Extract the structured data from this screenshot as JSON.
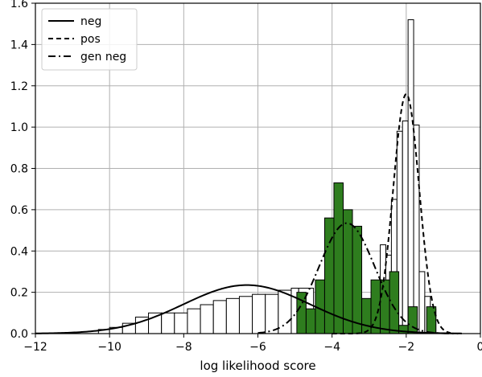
{
  "chart_data": {
    "type": "histogram",
    "title": "",
    "xlabel": "log likelihood score",
    "ylabel": "",
    "xlim": [
      -12,
      0
    ],
    "ylim": [
      0,
      1.6
    ],
    "xticks": [
      -12,
      -10,
      -8,
      -6,
      -4,
      -2,
      0
    ],
    "yticks": [
      0.0,
      0.2,
      0.4,
      0.6,
      0.8,
      1.0,
      1.2,
      1.4,
      1.6
    ],
    "ytick_labels": [
      "0.0",
      "0.2",
      "0.4",
      "0.6",
      "0.8",
      "1.0",
      "1.2",
      "1.4",
      "1.6"
    ],
    "xtick_labels": [
      "−12",
      "−10",
      "−8",
      "−6",
      "−4",
      "−2",
      "0"
    ],
    "grid": true,
    "legend_position": "top-left",
    "colors": {
      "neg_hist_fill": "#ffffff",
      "pos_hist_fill": "#ffffff",
      "gen_hist_fill": "#2e7d1e",
      "edge": "#000000",
      "grid": "#b0b0b0"
    },
    "histograms": [
      {
        "role": "neg",
        "fill": "#ffffff",
        "bins": [
          {
            "x0": -10.3,
            "x1": -10.0,
            "y": 0.02
          },
          {
            "x0": -10.0,
            "x1": -9.65,
            "y": 0.03
          },
          {
            "x0": -9.65,
            "x1": -9.3,
            "y": 0.05
          },
          {
            "x0": -9.3,
            "x1": -8.95,
            "y": 0.08
          },
          {
            "x0": -8.95,
            "x1": -8.6,
            "y": 0.1
          },
          {
            "x0": -8.6,
            "x1": -8.25,
            "y": 0.1
          },
          {
            "x0": -8.25,
            "x1": -7.9,
            "y": 0.1
          },
          {
            "x0": -7.9,
            "x1": -7.55,
            "y": 0.12
          },
          {
            "x0": -7.55,
            "x1": -7.2,
            "y": 0.14
          },
          {
            "x0": -7.2,
            "x1": -6.85,
            "y": 0.16
          },
          {
            "x0": -6.85,
            "x1": -6.5,
            "y": 0.17
          },
          {
            "x0": -6.5,
            "x1": -6.15,
            "y": 0.18
          },
          {
            "x0": -6.15,
            "x1": -5.8,
            "y": 0.19
          },
          {
            "x0": -5.8,
            "x1": -5.45,
            "y": 0.19
          },
          {
            "x0": -5.45,
            "x1": -5.1,
            "y": 0.21
          },
          {
            "x0": -5.1,
            "x1": -4.9,
            "y": 0.22
          },
          {
            "x0": -4.9,
            "x1": -4.5,
            "y": 0.22
          }
        ]
      },
      {
        "role": "pos",
        "fill": "#ffffff",
        "bins": [
          {
            "x0": -2.7,
            "x1": -2.55,
            "y": 0.43
          },
          {
            "x0": -2.55,
            "x1": -2.4,
            "y": 0.38
          },
          {
            "x0": -2.4,
            "x1": -2.25,
            "y": 0.65
          },
          {
            "x0": -2.25,
            "x1": -2.1,
            "y": 0.98
          },
          {
            "x0": -2.1,
            "x1": -1.95,
            "y": 1.03
          },
          {
            "x0": -1.95,
            "x1": -1.8,
            "y": 1.52
          },
          {
            "x0": -1.8,
            "x1": -1.65,
            "y": 1.01
          },
          {
            "x0": -1.65,
            "x1": -1.5,
            "y": 0.3
          },
          {
            "x0": -1.5,
            "x1": -1.35,
            "y": 0.18
          },
          {
            "x0": -1.35,
            "x1": -1.2,
            "y": 0.12
          }
        ]
      },
      {
        "role": "gen neg",
        "fill": "#2e7d1e",
        "bins": [
          {
            "x0": -4.95,
            "x1": -4.7,
            "y": 0.2
          },
          {
            "x0": -4.7,
            "x1": -4.45,
            "y": 0.12
          },
          {
            "x0": -4.45,
            "x1": -4.2,
            "y": 0.26
          },
          {
            "x0": -4.2,
            "x1": -3.95,
            "y": 0.56
          },
          {
            "x0": -3.95,
            "x1": -3.7,
            "y": 0.73
          },
          {
            "x0": -3.7,
            "x1": -3.45,
            "y": 0.6
          },
          {
            "x0": -3.45,
            "x1": -3.2,
            "y": 0.52
          },
          {
            "x0": -3.2,
            "x1": -2.95,
            "y": 0.17
          },
          {
            "x0": -2.95,
            "x1": -2.7,
            "y": 0.26
          },
          {
            "x0": -2.7,
            "x1": -2.45,
            "y": 0.26
          },
          {
            "x0": -2.45,
            "x1": -2.2,
            "y": 0.3
          },
          {
            "x0": -2.2,
            "x1": -1.95,
            "y": 0.04
          },
          {
            "x0": -1.95,
            "x1": -1.7,
            "y": 0.13
          },
          {
            "x0": -1.45,
            "x1": -1.2,
            "y": 0.13
          }
        ]
      }
    ],
    "curves": [
      {
        "name": "neg",
        "style": "solid",
        "kind": "gaussian",
        "mean": -6.3,
        "sd": 1.7,
        "peak": 0.235,
        "x_range": [
          -12,
          -0.5
        ]
      },
      {
        "name": "pos",
        "style": "dashed",
        "kind": "gaussian",
        "mean": -2.0,
        "sd": 0.35,
        "peak": 1.16,
        "x_range": [
          -4.0,
          -0.8
        ]
      },
      {
        "name": "gen neg",
        "style": "dashdot",
        "kind": "gaussian",
        "mean": -3.6,
        "sd": 0.75,
        "peak": 0.535,
        "x_range": [
          -6.0,
          -0.6
        ]
      }
    ],
    "legend": [
      {
        "label": "neg",
        "style": "solid"
      },
      {
        "label": "pos",
        "style": "dashed"
      },
      {
        "label": "gen neg",
        "style": "dashdot"
      }
    ]
  }
}
